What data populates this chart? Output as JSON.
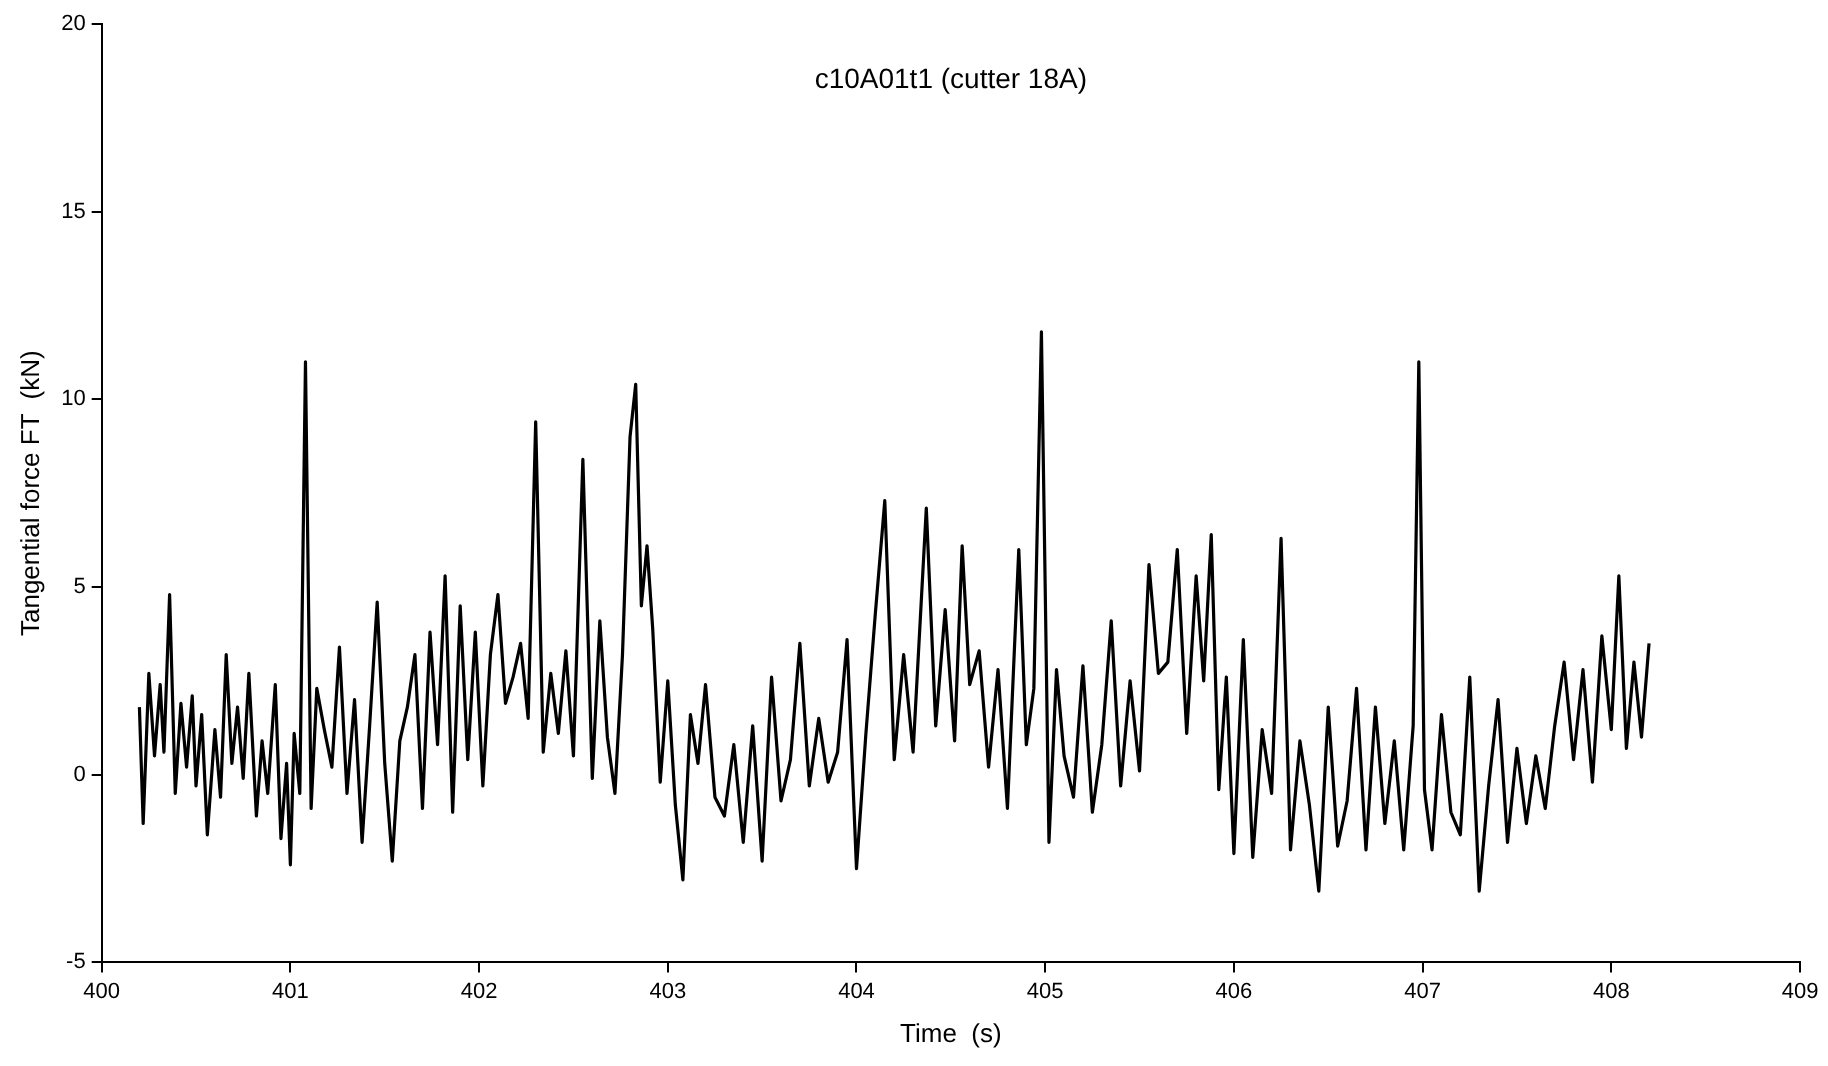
{
  "chart_data": {
    "type": "line",
    "title": "c10A01t1 (cutter 18A)",
    "xlabel": "Time  (s)",
    "ylabel": "Tangential force FT  (kN)",
    "xlim": [
      400,
      409
    ],
    "ylim": [
      -5,
      20
    ],
    "xticks": [
      400,
      401,
      402,
      403,
      404,
      405,
      406,
      407,
      408,
      409
    ],
    "yticks": [
      -5,
      0,
      5,
      10,
      15,
      20
    ],
    "grid": false,
    "legend": false,
    "marker": "none",
    "line_style": "solid",
    "series": [
      {
        "color": "#000000",
        "x": [
          400.2,
          400.22,
          400.25,
          400.28,
          400.31,
          400.33,
          400.36,
          400.39,
          400.42,
          400.45,
          400.48,
          400.5,
          400.53,
          400.56,
          400.6,
          400.63,
          400.66,
          400.69,
          400.72,
          400.75,
          400.78,
          400.82,
          400.85,
          400.88,
          400.92,
          400.95,
          400.98,
          401.0,
          401.02,
          401.05,
          401.08,
          401.11,
          401.14,
          401.18,
          401.22,
          401.26,
          401.3,
          401.34,
          401.38,
          401.42,
          401.46,
          401.5,
          401.54,
          401.58,
          401.62,
          401.66,
          401.7,
          401.74,
          401.78,
          401.82,
          401.86,
          401.9,
          401.94,
          401.98,
          402.02,
          402.06,
          402.1,
          402.14,
          402.18,
          402.22,
          402.26,
          402.3,
          402.34,
          402.38,
          402.42,
          402.46,
          402.5,
          402.55,
          402.6,
          402.64,
          402.68,
          402.72,
          402.76,
          402.8,
          402.83,
          402.86,
          402.89,
          402.92,
          402.96,
          403.0,
          403.04,
          403.08,
          403.12,
          403.16,
          403.2,
          403.25,
          403.3,
          403.35,
          403.4,
          403.45,
          403.5,
          403.55,
          403.6,
          403.65,
          403.7,
          403.75,
          403.8,
          403.85,
          403.9,
          403.95,
          404.0,
          404.05,
          404.1,
          404.15,
          404.2,
          404.25,
          404.3,
          404.37,
          404.42,
          404.47,
          404.52,
          404.56,
          404.6,
          404.65,
          404.7,
          404.75,
          404.8,
          404.86,
          404.9,
          404.94,
          404.98,
          405.02,
          405.06,
          405.1,
          405.15,
          405.2,
          405.25,
          405.3,
          405.35,
          405.4,
          405.45,
          405.5,
          405.55,
          405.6,
          405.65,
          405.7,
          405.75,
          405.8,
          405.84,
          405.88,
          405.92,
          405.96,
          406.0,
          406.05,
          406.1,
          406.15,
          406.2,
          406.25,
          406.3,
          406.35,
          406.4,
          406.45,
          406.5,
          406.55,
          406.6,
          406.65,
          406.7,
          406.75,
          406.8,
          406.85,
          406.9,
          406.95,
          406.98,
          407.01,
          407.05,
          407.1,
          407.15,
          407.2,
          407.25,
          407.3,
          407.35,
          407.4,
          407.45,
          407.5,
          407.55,
          407.6,
          407.65,
          407.7,
          407.75,
          407.8,
          407.85,
          407.9,
          407.95,
          408.0,
          408.04,
          408.08,
          408.12,
          408.16,
          408.2
        ],
        "values": [
          1.8,
          -1.3,
          2.7,
          0.5,
          2.4,
          0.6,
          4.8,
          -0.5,
          1.9,
          0.2,
          2.1,
          -0.3,
          1.6,
          -1.6,
          1.2,
          -0.6,
          3.2,
          0.3,
          1.8,
          -0.1,
          2.7,
          -1.1,
          0.9,
          -0.5,
          2.4,
          -1.7,
          0.3,
          -2.4,
          1.1,
          -0.5,
          11.0,
          -0.9,
          2.3,
          1.2,
          0.2,
          3.4,
          -0.5,
          2.0,
          -1.8,
          1.3,
          4.6,
          0.3,
          -2.3,
          0.9,
          1.8,
          3.2,
          -0.9,
          3.8,
          0.8,
          5.3,
          -1.0,
          4.5,
          0.4,
          3.8,
          -0.3,
          3.2,
          4.8,
          1.9,
          2.6,
          3.5,
          1.5,
          9.4,
          0.6,
          2.7,
          1.1,
          3.3,
          0.5,
          8.4,
          -0.1,
          4.1,
          1.0,
          -0.5,
          3.2,
          9.0,
          10.4,
          4.5,
          6.1,
          3.9,
          -0.2,
          2.5,
          -0.8,
          -2.8,
          1.6,
          0.3,
          2.4,
          -0.6,
          -1.1,
          0.8,
          -1.8,
          1.3,
          -2.3,
          2.6,
          -0.7,
          0.4,
          3.5,
          -0.3,
          1.5,
          -0.2,
          0.6,
          3.6,
          -2.5,
          1.1,
          4.3,
          7.3,
          0.4,
          3.2,
          0.6,
          7.1,
          1.3,
          4.4,
          0.9,
          6.1,
          2.4,
          3.3,
          0.2,
          2.8,
          -0.9,
          6.0,
          0.8,
          2.3,
          11.8,
          -1.8,
          2.8,
          0.5,
          -0.6,
          2.9,
          -1.0,
          0.8,
          4.1,
          -0.3,
          2.5,
          0.1,
          5.6,
          2.7,
          3.0,
          6.0,
          1.1,
          5.3,
          2.5,
          6.4,
          -0.4,
          2.6,
          -2.1,
          3.6,
          -2.2,
          1.2,
          -0.5,
          6.3,
          -2.0,
          0.9,
          -0.8,
          -3.1,
          1.8,
          -1.9,
          -0.7,
          2.3,
          -2.0,
          1.8,
          -1.3,
          0.9,
          -2.0,
          1.3,
          11.0,
          -0.4,
          -2.0,
          1.6,
          -1.0,
          -1.6,
          2.6,
          -3.1,
          -0.3,
          2.0,
          -1.8,
          0.7,
          -1.3,
          0.5,
          -0.9,
          1.3,
          3.0,
          0.4,
          2.8,
          -0.2,
          3.7,
          1.2,
          5.3,
          0.7,
          3.0,
          1.0,
          3.5
        ]
      }
    ]
  }
}
